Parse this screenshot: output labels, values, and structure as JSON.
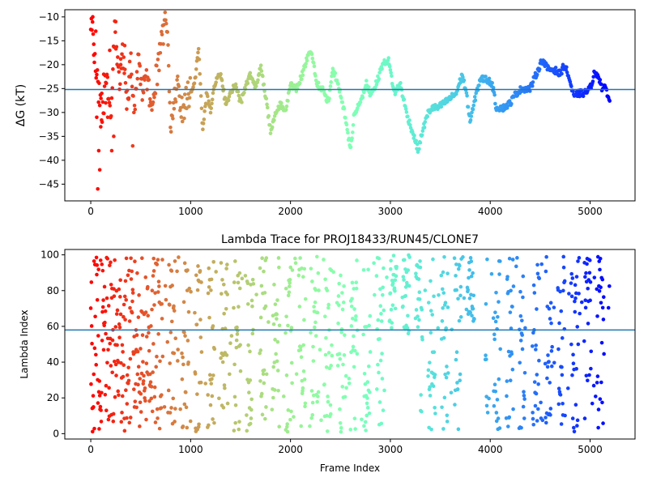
{
  "chart_data": [
    {
      "type": "scatter",
      "title": "",
      "xlabel": "",
      "ylabel": "ΔG (kT)",
      "xlim": [
        -260,
        5450
      ],
      "ylim": [
        -48.5,
        -8.5
      ],
      "xticks": [
        0,
        1000,
        2000,
        3000,
        4000,
        5000
      ],
      "yticks": [
        -45,
        -40,
        -35,
        -30,
        -25,
        -20,
        -15,
        -10
      ],
      "grid": false,
      "colormap": "rainbow (frame 0 = red, frame 5200 = violet)",
      "reference_line": {
        "y": -25.2,
        "color": "#1f77b4"
      },
      "trace_keypoints": [
        [
          0,
          -10
        ],
        [
          40,
          -18
        ],
        [
          80,
          -26
        ],
        [
          120,
          -30
        ],
        [
          160,
          -22
        ],
        [
          200,
          -32
        ],
        [
          240,
          -12
        ],
        [
          280,
          -24
        ],
        [
          320,
          -18
        ],
        [
          360,
          -28
        ],
        [
          400,
          -20
        ],
        [
          440,
          -30
        ],
        [
          480,
          -18
        ],
        [
          520,
          -26
        ],
        [
          560,
          -22
        ],
        [
          600,
          -28
        ],
        [
          640,
          -24
        ],
        [
          680,
          -20
        ],
        [
          720,
          -14
        ],
        [
          760,
          -10
        ],
        [
          800,
          -32
        ],
        [
          860,
          -24
        ],
        [
          920,
          -30
        ],
        [
          980,
          -26
        ],
        [
          1040,
          -24
        ],
        [
          1080,
          -16
        ],
        [
          1120,
          -34
        ],
        [
          1160,
          -26
        ],
        [
          1200,
          -30
        ],
        [
          1240,
          -24
        ],
        [
          1300,
          -22
        ],
        [
          1350,
          -28
        ],
        [
          1400,
          -26
        ],
        [
          1450,
          -24
        ],
        [
          1500,
          -28
        ],
        [
          1560,
          -24
        ],
        [
          1600,
          -22
        ],
        [
          1650,
          -25
        ],
        [
          1700,
          -20
        ],
        [
          1760,
          -28
        ],
        [
          1800,
          -34
        ],
        [
          1850,
          -30
        ],
        [
          1900,
          -28
        ],
        [
          1950,
          -30
        ],
        [
          2000,
          -24
        ],
        [
          2060,
          -25
        ],
        [
          2120,
          -22
        ],
        [
          2180,
          -18
        ],
        [
          2220,
          -18
        ],
        [
          2260,
          -24
        ],
        [
          2320,
          -25
        ],
        [
          2380,
          -28
        ],
        [
          2420,
          -21
        ],
        [
          2480,
          -24
        ],
        [
          2540,
          -30
        ],
        [
          2600,
          -38
        ],
        [
          2640,
          -30
        ],
        [
          2700,
          -28
        ],
        [
          2760,
          -24
        ],
        [
          2800,
          -26
        ],
        [
          2860,
          -24
        ],
        [
          2920,
          -20
        ],
        [
          2980,
          -19
        ],
        [
          3040,
          -26
        ],
        [
          3100,
          -24
        ],
        [
          3160,
          -30
        ],
        [
          3220,
          -34
        ],
        [
          3280,
          -38
        ],
        [
          3320,
          -34
        ],
        [
          3380,
          -30
        ],
        [
          3420,
          -29
        ],
        [
          3480,
          -29
        ],
        [
          3540,
          -28
        ],
        [
          3600,
          -27
        ],
        [
          3660,
          -26
        ],
        [
          3720,
          -22
        ],
        [
          3760,
          -26
        ],
        [
          3800,
          -32
        ],
        [
          3860,
          -26
        ],
        [
          3900,
          -23
        ],
        [
          3960,
          -23
        ],
        [
          4020,
          -24
        ],
        [
          4060,
          -29
        ],
        [
          4140,
          -29
        ],
        [
          4200,
          -28
        ],
        [
          4260,
          -26
        ],
        [
          4320,
          -25
        ],
        [
          4400,
          -25
        ],
        [
          4460,
          -22
        ],
        [
          4520,
          -19
        ],
        [
          4580,
          -21
        ],
        [
          4640,
          -21
        ],
        [
          4700,
          -22
        ],
        [
          4740,
          -20
        ],
        [
          4780,
          -22
        ],
        [
          4840,
          -27
        ],
        [
          4880,
          -26
        ],
        [
          4940,
          -26
        ],
        [
          5000,
          -25
        ],
        [
          5040,
          -22
        ],
        [
          5080,
          -22
        ],
        [
          5120,
          -25
        ],
        [
          5160,
          -25
        ],
        [
          5200,
          -28
        ]
      ]
    },
    {
      "type": "scatter",
      "title": "Lambda Trace for PROJ18433/RUN45/CLONE7",
      "xlabel": "Frame Index",
      "ylabel": "Lambda Index",
      "xlim": [
        -260,
        5450
      ],
      "ylim": [
        -3,
        103
      ],
      "xticks": [
        0,
        1000,
        2000,
        3000,
        4000,
        5000
      ],
      "yticks": [
        0,
        20,
        40,
        60,
        80,
        100
      ],
      "grid": false,
      "colormap": "rainbow (frame 0 = red, frame 5200 = violet)",
      "reference_line": {
        "y": 58,
        "color": "#1f77b4"
      },
      "lambda_range": [
        1,
        99
      ],
      "n_frames": 5200
    }
  ],
  "axes": [
    {
      "ylabel": "ΔG (kT)",
      "xticklabels": [
        "0",
        "1000",
        "2000",
        "3000",
        "4000",
        "5000"
      ],
      "yticklabels": [
        "−45",
        "−40",
        "−35",
        "−30",
        "−25",
        "−20",
        "−15",
        "−10"
      ]
    },
    {
      "title": "Lambda Trace for PROJ18433/RUN45/CLONE7",
      "xlabel": "Frame Index",
      "ylabel": "Lambda Index",
      "xticklabels": [
        "0",
        "1000",
        "2000",
        "3000",
        "4000",
        "5000"
      ],
      "yticklabels": [
        "0",
        "20",
        "40",
        "60",
        "80",
        "100"
      ]
    }
  ]
}
